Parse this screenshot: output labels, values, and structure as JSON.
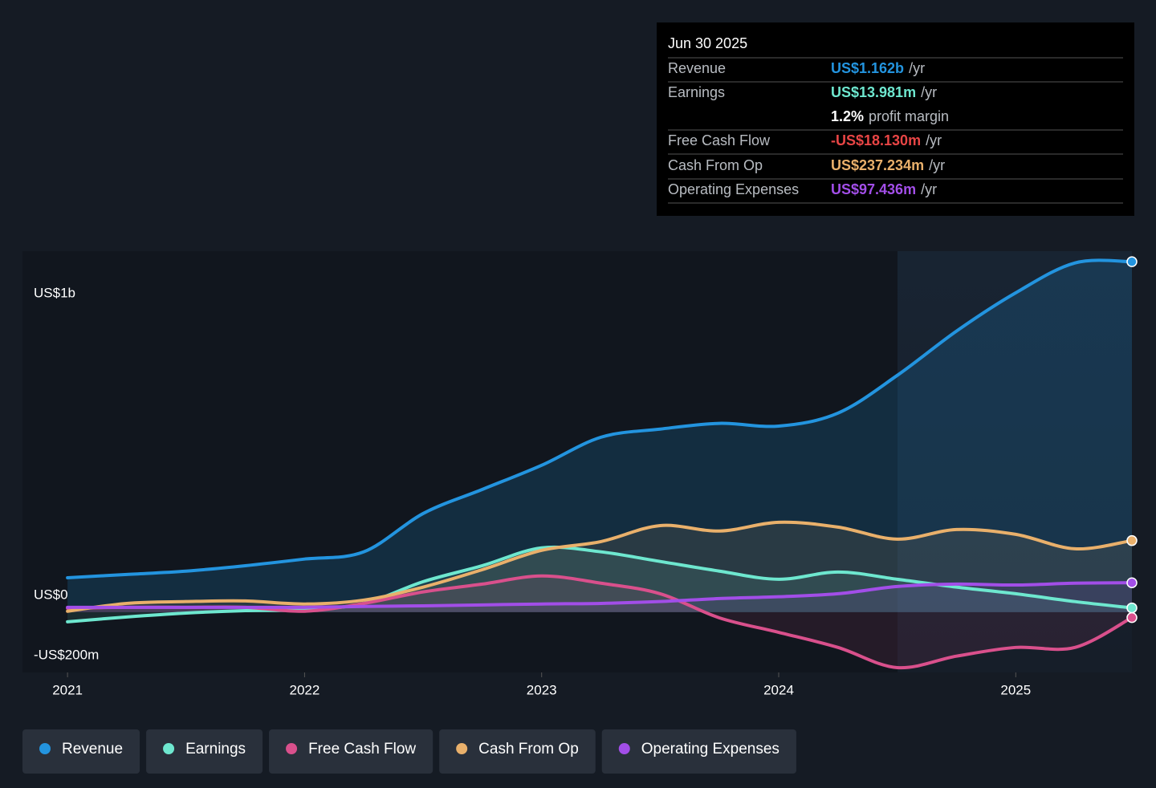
{
  "chart_data": {
    "type": "line",
    "x": [
      2021,
      2021.25,
      2021.5,
      2021.75,
      2022,
      2022.25,
      2022.5,
      2022.75,
      2023,
      2023.25,
      2023.5,
      2023.75,
      2024,
      2024.25,
      2024.5,
      2024.75,
      2025,
      2025.25,
      2025.49
    ],
    "xlim": [
      2020.81,
      2025.49
    ],
    "xticks": [
      2021,
      2022,
      2023,
      2024,
      2025
    ],
    "ylim": [
      -200,
      1197
    ],
    "yticks": [
      {
        "value": -200,
        "label": "-US$200m"
      },
      {
        "value": 0,
        "label": "US$0"
      },
      {
        "value": 500,
        "label": null
      },
      {
        "value": 1000,
        "label": "US$1b"
      }
    ],
    "grid": true,
    "series": [
      {
        "name": "Revenue",
        "color": "#2394df",
        "values": [
          114,
          125,
          136,
          154,
          176,
          200,
          327,
          407,
          487,
          580,
          607,
          626,
          617,
          660,
          785,
          932,
          1059,
          1158,
          1162
        ]
      },
      {
        "name": "Earnings",
        "color": "#6ee7cf",
        "values": [
          -32,
          -16,
          -3,
          5,
          8,
          29,
          101,
          154,
          213,
          200,
          168,
          136,
          109,
          133,
          109,
          83,
          61,
          35,
          13.981
        ]
      },
      {
        "name": "Free Cash Flow",
        "color": "#d9508c",
        "values": [
          13,
          16,
          16,
          16,
          3,
          29,
          67,
          93,
          120,
          96,
          61,
          -19,
          -67,
          -117,
          -184,
          -146,
          -117,
          -117,
          -18.13
        ]
      },
      {
        "name": "Cash From Op",
        "color": "#e9b06b",
        "values": [
          3,
          29,
          35,
          37,
          27,
          40,
          83,
          141,
          205,
          234,
          287,
          269,
          298,
          282,
          242,
          274,
          258,
          210,
          237.234
        ]
      },
      {
        "name": "Operating Expenses",
        "color": "#a24ee8",
        "values": [
          16,
          16,
          16,
          16,
          16,
          19,
          21,
          24,
          27,
          29,
          35,
          45,
          51,
          61,
          85,
          93,
          90,
          96,
          97.436
        ]
      }
    ]
  },
  "tooltip": {
    "date": "Jun 30 2025",
    "rows": [
      {
        "label": "Revenue",
        "value": "US$1.162b",
        "unit": "/yr"
      },
      {
        "label": "Earnings",
        "value": "US$13.981m",
        "unit": "/yr"
      },
      {
        "label": null,
        "value": "1.2%",
        "unit": "profit margin"
      },
      {
        "label": "Free Cash Flow",
        "value": "-US$18.130m",
        "unit": "/yr"
      },
      {
        "label": "Cash From Op",
        "value": "US$237.234m",
        "unit": "/yr"
      },
      {
        "label": "Operating Expenses",
        "value": "US$97.436m",
        "unit": "/yr"
      }
    ],
    "colors": [
      "#2394df",
      "#6ee7cf",
      "#ffffff",
      "#e84545",
      "#e9b06b",
      "#a24ee8"
    ]
  }
}
